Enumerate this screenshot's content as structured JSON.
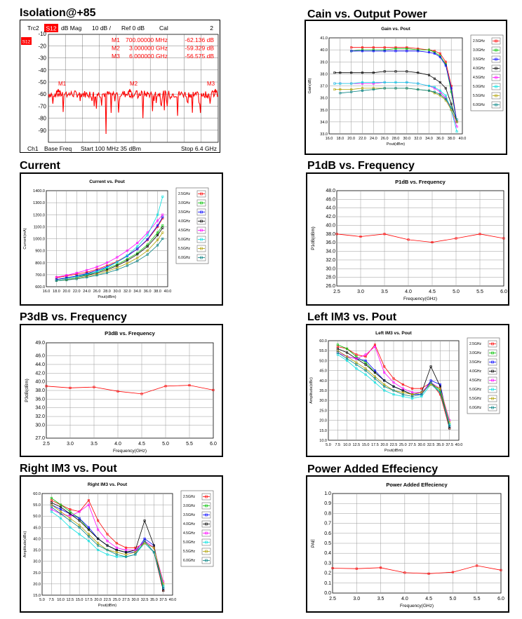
{
  "sections": {
    "isolation": "Isolation@+85",
    "gain": "Cain vs. Output Power",
    "current": "Current",
    "p1db": "P1dB vs. Frequency",
    "p3db": "P3dB vs. Frequency",
    "left_im3": "Left  IM3  vs.  Pout",
    "right_im3": "Right  IM3  vs.  Pout",
    "pae": "Power  Added  Effeciency"
  },
  "vna": {
    "header": {
      "trc": "Trc2",
      "param": "S12",
      "format": "dB Mag",
      "scale": "10 dB /",
      "ref": "Ref 0 dB",
      "cal": "Cal",
      "ch": "2"
    },
    "markers": [
      {
        "name": "M1",
        "freq": "700.00000 MHz",
        "val": "-62.136 dB"
      },
      {
        "name": "M2",
        "freq": "3.000000 GHz",
        "val": "-59.329 dB"
      },
      {
        "name": "M3",
        "freq": "6.000000 GHz",
        "val": "-56.575 dB"
      }
    ],
    "marker_labels": [
      "M1",
      "M2",
      "M3"
    ],
    "ref_box": "S12",
    "footer": {
      "ch": "Ch1",
      "base": "Base Freq",
      "start": "Start  100 MHz  35 dBm",
      "stop": "Stop  6.4 GHz"
    },
    "y_ticks": [
      "-10",
      "-20",
      "-30",
      "-40",
      "-50",
      "-60",
      "-70",
      "-80",
      "-90"
    ],
    "trace_color": "#ff0000"
  },
  "legend_labels": [
    "2.5GHz",
    "3.0GHz",
    "3.5GHz",
    "4.0GHz",
    "4.5GHz",
    "5.0GHz",
    "5.5GHz",
    "6.0GHz"
  ],
  "series_colors": [
    "#ff0000",
    "#00c000",
    "#0000ff",
    "#000000",
    "#ff00ff",
    "#00e0e0",
    "#b0a000",
    "#008080"
  ],
  "chart_data": [
    {
      "id": "gain",
      "type": "line",
      "title": "Gain vs. Pout",
      "xlabel": "Pout(dBm)",
      "ylabel": "Gain(dB)",
      "xlim": [
        16,
        40
      ],
      "ylim": [
        33,
        41
      ],
      "xticks": [
        "16.0",
        "18.0",
        "20.0",
        "22.0",
        "24.0",
        "26.0",
        "28.0",
        "30.0",
        "32.0",
        "34.0",
        "36.0",
        "38.0",
        "40.0"
      ],
      "yticks": [
        "33.0",
        "34.0",
        "35.0",
        "36.0",
        "37.0",
        "38.0",
        "39.0",
        "40.0",
        "41.0"
      ],
      "x": [
        17.0,
        18.0,
        20.0,
        22.0,
        24.0,
        26.0,
        28.0,
        30.0,
        32.0,
        34.0,
        35.0,
        36.0,
        37.0,
        38.0,
        39.0
      ],
      "series": [
        {
          "name": "2.5GHz",
          "values": [
            null,
            null,
            40.2,
            40.2,
            40.2,
            40.2,
            40.2,
            40.2,
            40.1,
            40.0,
            39.9,
            39.7,
            39.0,
            37.0,
            34.0
          ]
        },
        {
          "name": "3.0GHz",
          "values": [
            null,
            null,
            39.9,
            40.0,
            40.0,
            40.0,
            40.1,
            40.1,
            40.0,
            40.0,
            39.8,
            39.5,
            38.8,
            36.5,
            34.0
          ]
        },
        {
          "name": "3.5GHz",
          "values": [
            null,
            null,
            39.9,
            39.9,
            39.9,
            39.9,
            39.9,
            39.9,
            39.9,
            39.8,
            39.7,
            39.4,
            38.7,
            36.8,
            34.0
          ]
        },
        {
          "name": "4.0GHz",
          "values": [
            38.1,
            38.1,
            38.1,
            38.1,
            38.1,
            38.2,
            38.2,
            38.2,
            38.1,
            37.9,
            37.6,
            37.3,
            36.8,
            35.5,
            34.0
          ]
        },
        {
          "name": "4.5GHz",
          "values": [
            37.2,
            37.2,
            37.2,
            37.2,
            37.2,
            37.3,
            37.3,
            37.3,
            37.2,
            37.0,
            36.8,
            36.5,
            36.0,
            35.0,
            33.6
          ]
        },
        {
          "name": "5.0GHz",
          "values": [
            37.2,
            37.2,
            37.2,
            37.3,
            37.3,
            37.3,
            37.3,
            37.3,
            37.2,
            37.0,
            36.9,
            36.6,
            36.2,
            35.0,
            33.2
          ]
        },
        {
          "name": "5.5GHz",
          "values": [
            36.7,
            36.7,
            36.7,
            36.8,
            36.8,
            36.8,
            36.8,
            36.8,
            36.7,
            36.6,
            36.4,
            36.2,
            35.8,
            35.0,
            34.0
          ]
        },
        {
          "name": "6.0GHz",
          "values": [
            null,
            36.4,
            36.5,
            36.6,
            36.7,
            36.8,
            36.8,
            36.8,
            36.7,
            36.6,
            36.5,
            36.3,
            35.9,
            35.2,
            34.2
          ]
        }
      ]
    },
    {
      "id": "current",
      "type": "line",
      "title": "Current vs. Pout",
      "xlabel": "Pout(dBm)",
      "ylabel": "Current(mA)",
      "xlim": [
        16,
        40
      ],
      "ylim": [
        600,
        1400
      ],
      "xticks": [
        "16.0",
        "18.0",
        "20.0",
        "22.0",
        "24.0",
        "26.0",
        "28.0",
        "30.0",
        "32.0",
        "34.0",
        "36.0",
        "38.0",
        "40.0"
      ],
      "yticks": [
        "600.0",
        "700.0",
        "800.0",
        "900.0",
        "1000.0",
        "1100.0",
        "1200.0",
        "1300.0",
        "1400.0"
      ],
      "x": [
        17,
        18,
        20,
        22,
        24,
        26,
        28,
        30,
        32,
        34,
        36,
        38,
        39
      ],
      "series": [
        {
          "name": "2.5GHz",
          "values": [
            null,
            675,
            690,
            705,
            720,
            745,
            775,
            810,
            860,
            915,
            990,
            1100,
            1170
          ]
        },
        {
          "name": "3.0GHz",
          "values": [
            null,
            660,
            672,
            688,
            705,
            725,
            750,
            785,
            830,
            880,
            950,
            1050,
            1110
          ]
        },
        {
          "name": "3.5GHz",
          "values": [
            null,
            660,
            675,
            690,
            710,
            735,
            765,
            805,
            855,
            915,
            995,
            1110,
            1180
          ]
        },
        {
          "name": "4.0GHz",
          "values": [
            null,
            650,
            662,
            678,
            695,
            715,
            740,
            775,
            818,
            870,
            935,
            1030,
            1090
          ]
        },
        {
          "name": "4.5GHz",
          "values": [
            null,
            680,
            695,
            715,
            738,
            765,
            800,
            845,
            900,
            965,
            1050,
            1150,
            1200
          ]
        },
        {
          "name": "5.0GHz",
          "values": [
            null,
            650,
            662,
            680,
            700,
            725,
            760,
            805,
            860,
            935,
            1030,
            1200,
            1350
          ]
        },
        {
          "name": "5.5GHz",
          "values": [
            null,
            650,
            658,
            670,
            685,
            705,
            728,
            758,
            795,
            840,
            900,
            990,
            1050
          ]
        },
        {
          "name": "6.0GHz",
          "values": [
            null,
            650,
            655,
            665,
            678,
            695,
            715,
            742,
            775,
            815,
            868,
            945,
            1000
          ]
        }
      ]
    },
    {
      "id": "p1db",
      "type": "line",
      "title": "P1dB  vs.  Frequency",
      "xlabel": "Frequency(GHz)",
      "ylabel": "P1dB(dBm)",
      "xlim": [
        2.5,
        6.0
      ],
      "ylim": [
        26,
        48
      ],
      "xticks": [
        "2.5",
        "3.0",
        "3.5",
        "4.0",
        "4.5",
        "5.0",
        "5.5",
        "6.0"
      ],
      "yticks": [
        "26.0",
        "28.0",
        "30.0",
        "32.0",
        "34.0",
        "36.0",
        "38.0",
        "40.0",
        "42.0",
        "44.0",
        "46.0",
        "48.0"
      ],
      "x": [
        2.5,
        3.0,
        3.5,
        4.0,
        4.5,
        5.0,
        5.5,
        6.0
      ],
      "series": [
        {
          "values": [
            38.0,
            37.4,
            38.0,
            36.7,
            36.1,
            37.0,
            38.0,
            37.0
          ]
        }
      ]
    },
    {
      "id": "p3db",
      "type": "line",
      "title": "P3dB  vs.  Frequency",
      "xlabel": "Frequency(GHz)",
      "ylabel": "P3dB(dBm)",
      "xlim": [
        2.5,
        6.0
      ],
      "ylim": [
        27,
        49
      ],
      "xticks": [
        "2.5",
        "3.0",
        "3.5",
        "4.0",
        "4.5",
        "5.0",
        "5.5",
        "6.0"
      ],
      "yticks": [
        "27.0",
        "30.0",
        "32.0",
        "34.0",
        "36.0",
        "38.0",
        "40.0",
        "42.0",
        "44.0",
        "46.0",
        "49.0"
      ],
      "x": [
        2.5,
        3.0,
        3.5,
        4.0,
        4.5,
        5.0,
        5.5,
        6.0
      ],
      "series": [
        {
          "values": [
            39.0,
            38.6,
            38.8,
            37.8,
            37.2,
            39.0,
            39.2,
            38.1
          ]
        }
      ]
    },
    {
      "id": "left_im3",
      "type": "line",
      "title": "Left IM3 vs. Pout",
      "xlabel": "Pout(dBm)",
      "ylabel": "Amplitude(dBc)",
      "xlim": [
        5,
        40
      ],
      "ylim": [
        10,
        60
      ],
      "xticks": [
        "5.0",
        "7.5",
        "10.0",
        "12.5",
        "15.0",
        "17.5",
        "20.0",
        "22.5",
        "25.0",
        "27.5",
        "30.0",
        "32.5",
        "35.0",
        "37.5",
        "40.0"
      ],
      "yticks": [
        "10.0",
        "15.0",
        "20.0",
        "25.0",
        "30.0",
        "35.0",
        "40.0",
        "45.0",
        "50.0",
        "55.0",
        "60.0"
      ],
      "x": [
        7.5,
        10,
        12.5,
        15,
        17.5,
        20,
        22.5,
        25,
        27.5,
        30,
        32.5,
        35,
        37.5
      ],
      "series": [
        {
          "name": "2.5GHz",
          "values": [
            57,
            56,
            53,
            52,
            58,
            47,
            41,
            38,
            36,
            36,
            39,
            33,
            16
          ]
        },
        {
          "name": "3.0GHz",
          "values": [
            58,
            56,
            52,
            49,
            44,
            40,
            37,
            35,
            33,
            34,
            39,
            35,
            18
          ]
        },
        {
          "name": "3.5GHz",
          "values": [
            55,
            52,
            51,
            50,
            45,
            40,
            37,
            35,
            33,
            33,
            40,
            38,
            17
          ]
        },
        {
          "name": "4.0GHz",
          "values": [
            56,
            54,
            51,
            48,
            44,
            40,
            37,
            35,
            33,
            34,
            47,
            37,
            16
          ]
        },
        {
          "name": "4.5GHz",
          "values": [
            54,
            52,
            51,
            53,
            57,
            44,
            39,
            36,
            34,
            34,
            39,
            36,
            20
          ]
        },
        {
          "name": "5.0GHz",
          "values": [
            53,
            50,
            46,
            43,
            39,
            35,
            33,
            32,
            31,
            32,
            38,
            34,
            18
          ]
        },
        {
          "name": "5.5GHz",
          "values": [
            55,
            52,
            49,
            46,
            42,
            38,
            35,
            34,
            33,
            34,
            38,
            36,
            19
          ]
        },
        {
          "name": "6.0GHz",
          "values": [
            54,
            51,
            48,
            45,
            41,
            37,
            35,
            33,
            32,
            33,
            39,
            34,
            17
          ]
        }
      ]
    },
    {
      "id": "right_im3",
      "type": "line",
      "title": "Right IM3 vs. Pout",
      "xlabel": "Pout(dBm)",
      "ylabel": "Amplitude(dBc)",
      "xlim": [
        5,
        40
      ],
      "ylim": [
        15,
        60
      ],
      "xticks": [
        "5.0",
        "7.5",
        "10.0",
        "12.5",
        "15.0",
        "17.5",
        "20.0",
        "22.5",
        "25.0",
        "27.5",
        "30.0",
        "32.5",
        "35.0",
        "37.5",
        "40.0"
      ],
      "yticks": [
        "15.0",
        "20.0",
        "25.0",
        "30.0",
        "35.0",
        "40.0",
        "45.0",
        "50.0",
        "55.0",
        "60.0"
      ],
      "x": [
        7.5,
        10,
        12.5,
        15,
        17.5,
        20,
        22.5,
        25,
        27.5,
        30,
        32.5,
        35,
        37.5
      ],
      "series": [
        {
          "name": "2.5GHz",
          "values": [
            57,
            55,
            53,
            52,
            57,
            48,
            42,
            38,
            36,
            36,
            38,
            34,
            17
          ]
        },
        {
          "name": "3.0GHz",
          "values": [
            58,
            55,
            52,
            49,
            44,
            40,
            37,
            35,
            34,
            35,
            39,
            36,
            19
          ]
        },
        {
          "name": "3.5GHz",
          "values": [
            55,
            53,
            51,
            49,
            45,
            40,
            37,
            35,
            34,
            34,
            40,
            37,
            18
          ]
        },
        {
          "name": "4.0GHz",
          "values": [
            56,
            54,
            51,
            48,
            44,
            40,
            37,
            35,
            34,
            35,
            48,
            37,
            17
          ]
        },
        {
          "name": "4.5GHz",
          "values": [
            53,
            51,
            50,
            52,
            55,
            44,
            39,
            36,
            35,
            35,
            39,
            36,
            21
          ]
        },
        {
          "name": "5.0GHz",
          "values": [
            52,
            49,
            45,
            42,
            39,
            35,
            33,
            32,
            32,
            33,
            38,
            34,
            19
          ]
        },
        {
          "name": "5.5GHz",
          "values": [
            55,
            52,
            49,
            46,
            42,
            38,
            35,
            34,
            33,
            34,
            38,
            36,
            20
          ]
        },
        {
          "name": "6.0GHz",
          "values": [
            54,
            51,
            48,
            45,
            41,
            37,
            35,
            33,
            32,
            33,
            39,
            34,
            18
          ]
        }
      ]
    },
    {
      "id": "pae",
      "type": "line",
      "title": "Power Added Effeciency",
      "xlabel": "Frequency(GHz)",
      "ylabel": "PAE",
      "xlim": [
        2.5,
        6.0
      ],
      "ylim": [
        0,
        1
      ],
      "xticks": [
        "2.5",
        "3.0",
        "3.5",
        "4.0",
        "4.5",
        "5.0",
        "5.5",
        "6.0"
      ],
      "yticks": [
        "0.0",
        "0.1",
        "0.2",
        "0.3",
        "0.4",
        "0.5",
        "0.6",
        "0.7",
        "0.8",
        "0.9",
        "1.0"
      ],
      "x": [
        2.5,
        3.0,
        3.5,
        4.0,
        4.5,
        5.0,
        5.5,
        6.0
      ],
      "series": [
        {
          "values": [
            0.25,
            0.245,
            0.255,
            0.205,
            0.195,
            0.21,
            0.275,
            0.23
          ]
        }
      ]
    }
  ]
}
